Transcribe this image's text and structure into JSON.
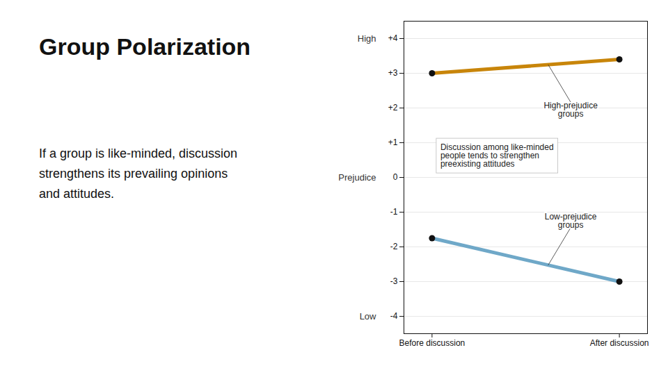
{
  "chart_data": {
    "type": "line",
    "title": "Group Polarization",
    "subtitle": "If a group is like-minded, discussion\nstrengthens its prevailing opinions\nand attitudes.",
    "categories": [
      "Before discussion",
      "After discussion"
    ],
    "series": [
      {
        "name": "High-prejudice\ngroups",
        "color": "#c8850a",
        "values": [
          3.0,
          3.4
        ]
      },
      {
        "name": "Low-prejudice\ngroups",
        "color": "#6fa8c8",
        "values": [
          -1.75,
          -3.0
        ]
      }
    ],
    "ylim": [
      -4.5,
      4.5
    ],
    "yticks": [
      -4,
      -3,
      -2,
      -1,
      0,
      {
        "value": 1,
        "label": "+1"
      },
      {
        "value": 2,
        "label": "+2"
      },
      {
        "value": 3,
        "label": "+3"
      },
      {
        "value": 4,
        "label": "+4"
      }
    ],
    "grid": true,
    "marker": "circle",
    "annotations": [
      {
        "text": "High",
        "y": 4
      },
      {
        "text": "Prejudice",
        "y": 0
      },
      {
        "text": "Low",
        "y": -4
      },
      {
        "text": "Discussion among like-minded\npeople tends to strengthen\npreexisting attitudes"
      }
    ]
  }
}
